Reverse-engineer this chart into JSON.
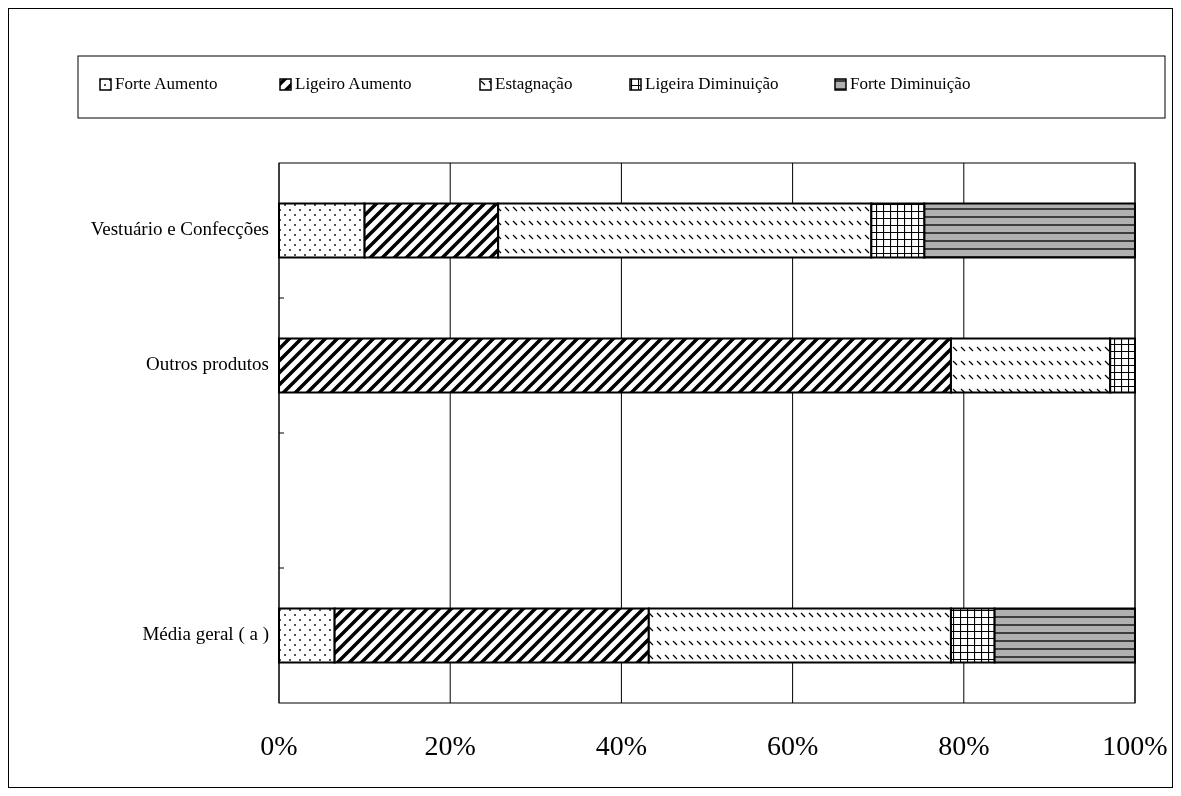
{
  "chart_data": {
    "type": "bar",
    "orientation": "horizontal",
    "stacked": true,
    "categories": [
      "Vestuário e Confecções",
      "Outros produtos",
      null,
      "Média geral ( a  )"
    ],
    "series": [
      {
        "name": "Forte Aumento",
        "color": "#000000",
        "values": [
          10,
          0,
          null,
          6.5
        ]
      },
      {
        "name": "Ligeiro Aumento",
        "color": "#000000",
        "values": [
          15.6,
          78.5,
          null,
          36.7
        ]
      },
      {
        "name": "Estagnação",
        "color": "#000000",
        "values": [
          43.6,
          18.6,
          null,
          35.3
        ]
      },
      {
        "name": "Ligeira Diminuição",
        "color": "#000000",
        "values": [
          6.2,
          2.9,
          null,
          5.1
        ]
      },
      {
        "name": "Forte Diminuição",
        "color": "#000000",
        "values": [
          24.6,
          0,
          null,
          16.4
        ]
      }
    ],
    "xlim": [
      0,
      100
    ],
    "xticks": [
      {
        "value": 0,
        "label": "0%"
      },
      {
        "value": 20,
        "label": "20%"
      },
      {
        "value": 40,
        "label": "40%"
      },
      {
        "value": 60,
        "label": "60%"
      },
      {
        "value": 80,
        "label": "80%"
      },
      {
        "value": 100,
        "label": "100%"
      }
    ],
    "grid": "x",
    "legend": "top"
  }
}
